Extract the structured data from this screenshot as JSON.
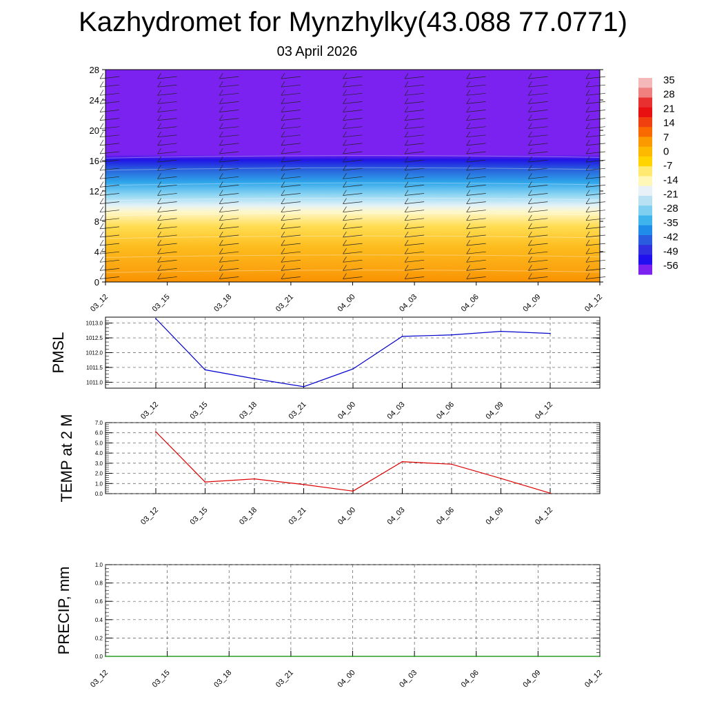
{
  "title": "Kazhydromet for Mynzhylky(43.088 77.0771)",
  "subtitle": "03 April 2026",
  "chart_data": [
    {
      "type": "heatmap",
      "title": "",
      "ylabel": "",
      "ylim": [
        0,
        28
      ],
      "yticks": [
        "0",
        "4",
        "8",
        "12",
        "16",
        "20",
        "24",
        "28"
      ],
      "xticks": [
        "03_12",
        "03_15",
        "03_18",
        "03_21",
        "04_00",
        "04_03",
        "04_06",
        "04_09",
        "04_12"
      ],
      "layers_approx": [
        {
          "from": 0,
          "to": 2,
          "value": 8
        },
        {
          "from": 2,
          "to": 6,
          "value": 4
        },
        {
          "from": 6,
          "to": 10,
          "value": 0
        },
        {
          "from": 10,
          "to": 12,
          "value": -14
        },
        {
          "from": 12,
          "to": 14,
          "value": -28
        },
        {
          "from": 14,
          "to": 16,
          "value": -42
        },
        {
          "from": 16,
          "to": 17,
          "value": -56
        },
        {
          "from": 17,
          "to": 28,
          "value": -60
        }
      ],
      "colorbar": {
        "labels": [
          "35",
          "28",
          "21",
          "14",
          "7",
          "0",
          "-7",
          "-14",
          "-21",
          "-28",
          "-35",
          "-42",
          "-49",
          "-56"
        ],
        "colors": [
          "#f4b8b8",
          "#f08080",
          "#e83030",
          "#e81010",
          "#f04010",
          "#f86a00",
          "#fb9a00",
          "#fdb800",
          "#ffd400",
          "#ffe970",
          "#fff7b8",
          "#e8f0f8",
          "#b8e2f4",
          "#7fd0f0",
          "#3fb4ec",
          "#1e8ce8",
          "#2a5ce0",
          "#3030e0",
          "#2010f0",
          "#7b22f0"
        ]
      }
    },
    {
      "type": "line",
      "ylabel": "PMSL",
      "ylim": [
        1010.8,
        1013.2
      ],
      "yticks": [
        "1011.0",
        "1011.5",
        "1012.0",
        "1012.5",
        "1013.0"
      ],
      "categories": [
        "03_12",
        "03_15",
        "03_18",
        "03_21",
        "04_00",
        "04_03",
        "04_06",
        "04_09",
        "04_12"
      ],
      "series": [
        {
          "name": "PMSL",
          "color": "#0000cc",
          "values": [
            1013.15,
            1011.42,
            1011.12,
            1010.85,
            1011.45,
            1012.55,
            1012.6,
            1012.72,
            1012.65
          ]
        }
      ]
    },
    {
      "type": "line",
      "ylabel": "TEMP at 2 M",
      "ylim": [
        0,
        7
      ],
      "yticks": [
        "0.0",
        "1.0",
        "2.0",
        "3.0",
        "4.0",
        "5.0",
        "6.0",
        "7.0"
      ],
      "categories": [
        "03_12",
        "03_15",
        "03_18",
        "03_21",
        "04_00",
        "04_03",
        "04_06",
        "04_09",
        "04_12"
      ],
      "series": [
        {
          "name": "TEMP at 2 M",
          "color": "#dd0000",
          "values": [
            6.1,
            1.15,
            1.45,
            0.9,
            0.25,
            3.15,
            2.9,
            1.5,
            0.05
          ]
        }
      ]
    },
    {
      "type": "line",
      "ylabel": "PRECIP, mm",
      "ylim": [
        0,
        1
      ],
      "yticks": [
        "0.0",
        "0.2",
        "0.4",
        "0.6",
        "0.8",
        "1.0"
      ],
      "categories": [
        "03_12",
        "03_15",
        "03_18",
        "03_21",
        "04_00",
        "04_03",
        "04_06",
        "04_09",
        "04_12"
      ],
      "series": [
        {
          "name": "PRECIP, mm",
          "color": "#008800",
          "values": [
            0,
            0,
            0,
            0,
            0,
            0,
            0,
            0,
            0
          ]
        }
      ]
    }
  ]
}
